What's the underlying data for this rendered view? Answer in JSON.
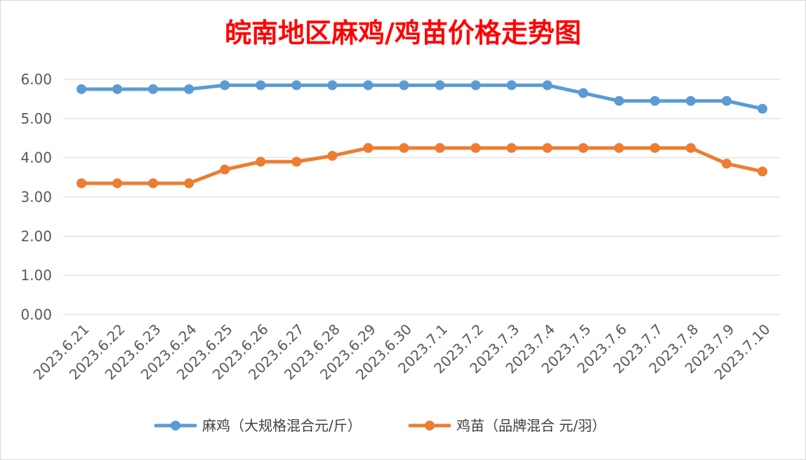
{
  "chart_data": {
    "type": "line",
    "title": "皖南地区麻鸡/鸡苗价格走势图",
    "title_color": "#ff0000",
    "categories": [
      "2023.6.21",
      "2023.6.22",
      "2023.6.23",
      "2023.6.24",
      "2023.6.25",
      "2023.6.26",
      "2023.6.27",
      "2023.6.28",
      "2023.6.29",
      "2023.6.30",
      "2023.7.1",
      "2023.7.2",
      "2023.7.3",
      "2023.7.4",
      "2023.7.5",
      "2023.7.6",
      "2023.7.7",
      "2023.7.8",
      "2023.7.9",
      "2023.7.10"
    ],
    "y_ticks": [
      "0.00",
      "1.00",
      "2.00",
      "3.00",
      "4.00",
      "5.00",
      "6.00"
    ],
    "ylim": [
      0,
      6
    ],
    "grid": true,
    "legend_position": "bottom",
    "series": [
      {
        "name": "麻鸡（大规格混合元/斤）",
        "color": "#5b9bd5",
        "values": [
          5.75,
          5.75,
          5.75,
          5.75,
          5.85,
          5.85,
          5.85,
          5.85,
          5.85,
          5.85,
          5.85,
          5.85,
          5.85,
          5.85,
          5.65,
          5.45,
          5.45,
          5.45,
          5.45,
          5.25
        ]
      },
      {
        "name": "鸡苗（品牌混合 元/羽）",
        "color": "#ed7d31",
        "values": [
          3.35,
          3.35,
          3.35,
          3.35,
          3.7,
          3.9,
          3.9,
          4.05,
          4.25,
          4.25,
          4.25,
          4.25,
          4.25,
          4.25,
          4.25,
          4.25,
          4.25,
          4.25,
          3.85,
          3.65
        ]
      }
    ]
  }
}
